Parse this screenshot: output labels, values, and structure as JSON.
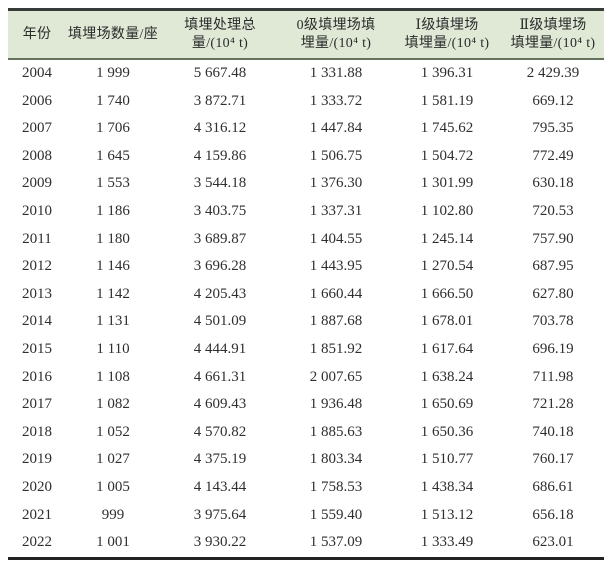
{
  "colors": {
    "header_bg": "#dfe9d6",
    "top_border": "#383c38",
    "bottom_border": "#222222",
    "header_divider": "#66735c",
    "text": "#2b2b2b"
  },
  "table": {
    "columns": [
      {
        "id": "year",
        "label": "年份",
        "lines": [
          "年份"
        ]
      },
      {
        "id": "landfill-count",
        "label": "填埋场数量/座",
        "lines": [
          "填埋场数量/座"
        ]
      },
      {
        "id": "total-landfill-amount",
        "label": "填埋处理总量/(10⁴ t)",
        "lines": [
          "填埋处理总",
          "量/(10⁴ t)"
        ]
      },
      {
        "id": "grade0-landfill-amount",
        "label": "0级填埋场填埋量/(10⁴ t)",
        "lines": [
          "0级填埋场填",
          "埋量/(10⁴ t)"
        ]
      },
      {
        "id": "grade1-landfill-amount",
        "label": "Ⅰ级填埋场填埋量/(10⁴ t)",
        "lines": [
          "Ⅰ级填埋场",
          "填埋量/(10⁴ t)"
        ]
      },
      {
        "id": "grade2-landfill-amount",
        "label": "Ⅱ级填埋场填埋量/(10⁴ t)",
        "lines": [
          "Ⅱ级填埋场",
          "填埋量/(10⁴ t)"
        ]
      }
    ],
    "rows": [
      [
        "2004",
        "1 999",
        "5 667.48",
        "1 331.88",
        "1 396.31",
        "2 429.39"
      ],
      [
        "2006",
        "1 740",
        "3 872.71",
        "1 333.72",
        "1 581.19",
        "669.12"
      ],
      [
        "2007",
        "1 706",
        "4 316.12",
        "1 447.84",
        "1 745.62",
        "795.35"
      ],
      [
        "2008",
        "1 645",
        "4 159.86",
        "1 506.75",
        "1 504.72",
        "772.49"
      ],
      [
        "2009",
        "1 553",
        "3 544.18",
        "1 376.30",
        "1 301.99",
        "630.18"
      ],
      [
        "2010",
        "1 186",
        "3 403.75",
        "1 337.31",
        "1 102.80",
        "720.53"
      ],
      [
        "2011",
        "1 180",
        "3 689.87",
        "1 404.55",
        "1 245.14",
        "757.90"
      ],
      [
        "2012",
        "1 146",
        "3 696.28",
        "1 443.95",
        "1 270.54",
        "687.95"
      ],
      [
        "2013",
        "1 142",
        "4 205.43",
        "1 660.44",
        "1 666.50",
        "627.80"
      ],
      [
        "2014",
        "1 131",
        "4 501.09",
        "1 887.68",
        "1 678.01",
        "703.78"
      ],
      [
        "2015",
        "1 110",
        "4 444.91",
        "1 851.92",
        "1 617.64",
        "696.19"
      ],
      [
        "2016",
        "1 108",
        "4 661.31",
        "2 007.65",
        "1 638.24",
        "711.98"
      ],
      [
        "2017",
        "1 082",
        "4 609.43",
        "1 936.48",
        "1 650.69",
        "721.28"
      ],
      [
        "2018",
        "1 052",
        "4 570.82",
        "1 885.63",
        "1 650.36",
        "740.18"
      ],
      [
        "2019",
        "1 027",
        "4 375.19",
        "1 803.34",
        "1 510.77",
        "760.17"
      ],
      [
        "2020",
        "1 005",
        "4 143.44",
        "1 758.53",
        "1 438.34",
        "686.61"
      ],
      [
        "2021",
        "999",
        "3 975.64",
        "1 559.40",
        "1 513.12",
        "656.18"
      ],
      [
        "2022",
        "1 001",
        "3 930.22",
        "1 537.09",
        "1 333.49",
        "623.01"
      ]
    ]
  },
  "chart_data": {
    "type": "table",
    "title": "",
    "columns": [
      "年份",
      "填埋场数量/座",
      "填埋处理总量/(10⁴ t)",
      "0级填埋场填埋量/(10⁴ t)",
      "Ⅰ级填埋场填埋量/(10⁴ t)",
      "Ⅱ级填埋场填埋量/(10⁴ t)"
    ],
    "years": [
      2004,
      2006,
      2007,
      2008,
      2009,
      2010,
      2011,
      2012,
      2013,
      2014,
      2015,
      2016,
      2017,
      2018,
      2019,
      2020,
      2021,
      2022
    ],
    "series": [
      {
        "name": "填埋场数量/座",
        "values": [
          1999,
          1740,
          1706,
          1645,
          1553,
          1186,
          1180,
          1146,
          1142,
          1131,
          1110,
          1108,
          1082,
          1052,
          1027,
          1005,
          999,
          1001
        ]
      },
      {
        "name": "填埋处理总量/(10⁴ t)",
        "values": [
          5667.48,
          3872.71,
          4316.12,
          4159.86,
          3544.18,
          3403.75,
          3689.87,
          3696.28,
          4205.43,
          4501.09,
          4444.91,
          4661.31,
          4609.43,
          4570.82,
          4375.19,
          4143.44,
          3975.64,
          3930.22
        ]
      },
      {
        "name": "0级填埋场填埋量/(10⁴ t)",
        "values": [
          1331.88,
          1333.72,
          1447.84,
          1506.75,
          1376.3,
          1337.31,
          1404.55,
          1443.95,
          1660.44,
          1887.68,
          1851.92,
          2007.65,
          1936.48,
          1885.63,
          1803.34,
          1758.53,
          1559.4,
          1537.09
        ]
      },
      {
        "name": "Ⅰ级填埋场填埋量/(10⁴ t)",
        "values": [
          1396.31,
          1581.19,
          1745.62,
          1504.72,
          1301.99,
          1102.8,
          1245.14,
          1270.54,
          1666.5,
          1678.01,
          1617.64,
          1638.24,
          1650.69,
          1650.36,
          1510.77,
          1438.34,
          1513.12,
          1333.49
        ]
      },
      {
        "name": "Ⅱ级填埋场填埋量/(10⁴ t)",
        "values": [
          2429.39,
          669.12,
          795.35,
          772.49,
          630.18,
          720.53,
          757.9,
          687.95,
          627.8,
          703.78,
          696.19,
          711.98,
          721.28,
          740.18,
          760.17,
          686.61,
          656.18,
          623.01
        ]
      }
    ]
  }
}
